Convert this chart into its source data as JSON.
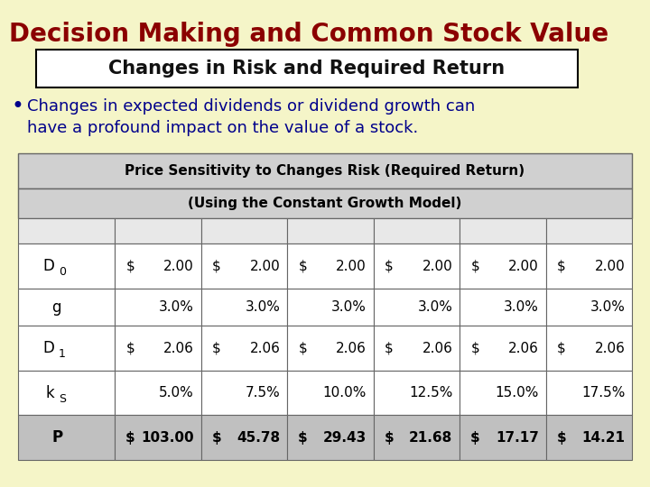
{
  "bg_color": "#f5f5c8",
  "title": "Decision Making and Common Stock Value",
  "title_color": "#8b0000",
  "subtitle": "Changes in Risk and Required Return",
  "subtitle_color": "#111111",
  "bullet_text_line1": "Changes in expected dividends or dividend growth can",
  "bullet_text_line2": "have a profound impact on the value of a stock.",
  "bullet_color": "#00008b",
  "table_header1": "Price Sensitivity to Changes Risk (Required Return)",
  "table_header2": "(Using the Constant Growth Model)",
  "row_labels": [
    "D",
    "g",
    "D",
    "k",
    "P"
  ],
  "row_subscripts": [
    "0",
    "",
    "1",
    "S",
    ""
  ],
  "row_bold": [
    false,
    false,
    false,
    false,
    true
  ],
  "col_data": [
    [
      "$ 2.00",
      "3.0%",
      "$ 2.06",
      "5.0%",
      "$ 103.00"
    ],
    [
      "$ 2.00",
      "3.0%",
      "$ 2.06",
      "7.5%",
      "$ 45.78"
    ],
    [
      "$ 2.00",
      "3.0%",
      "$ 2.06",
      "10.0%",
      "$ 29.43"
    ],
    [
      "$ 2.00",
      "3.0%",
      "$ 2.06",
      "12.5%",
      "$ 21.68"
    ],
    [
      "$ 2.00",
      "3.0%",
      "$ 2.06",
      "15.0%",
      "$ 17.17"
    ],
    [
      "$ 2.00",
      "3.0%",
      "$ 2.06",
      "17.5%",
      "$ 14.21"
    ]
  ],
  "table_header_bg": "#d0d0d0",
  "empty_row_bg": "#e8e8e8",
  "data_row_bg": "#ffffff",
  "last_row_bg": "#c0c0c0",
  "grid_color": "#666666",
  "font_size_title": 20,
  "font_size_subtitle": 15,
  "font_size_bullet": 13,
  "font_size_table_header": 11,
  "font_size_table_data": 11
}
